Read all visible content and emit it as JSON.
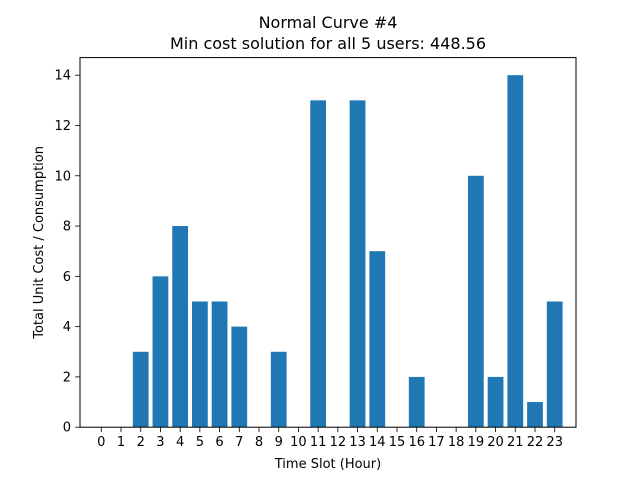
{
  "chart_data": {
    "type": "bar",
    "title": "Normal Curve #4",
    "subtitle": "Min cost solution for all 5 users: 448.56",
    "xlabel": "Time Slot (Hour)",
    "ylabel": "Total Unit Cost / Consumption",
    "categories": [
      "0",
      "1",
      "2",
      "3",
      "4",
      "5",
      "6",
      "7",
      "8",
      "9",
      "10",
      "11",
      "12",
      "13",
      "14",
      "15",
      "16",
      "17",
      "18",
      "19",
      "20",
      "21",
      "22",
      "23"
    ],
    "values": [
      0,
      0,
      3,
      6,
      8,
      5,
      5,
      4,
      0,
      3,
      0,
      13,
      0,
      13,
      7,
      0,
      2,
      0,
      0,
      10,
      2,
      14,
      1,
      5
    ],
    "ylim": [
      0,
      14.7
    ],
    "yticks": [
      "0",
      "2",
      "4",
      "6",
      "8",
      "10",
      "12",
      "14"
    ],
    "bar_color": "#1f77b4",
    "grid": false,
    "legend": "none"
  }
}
